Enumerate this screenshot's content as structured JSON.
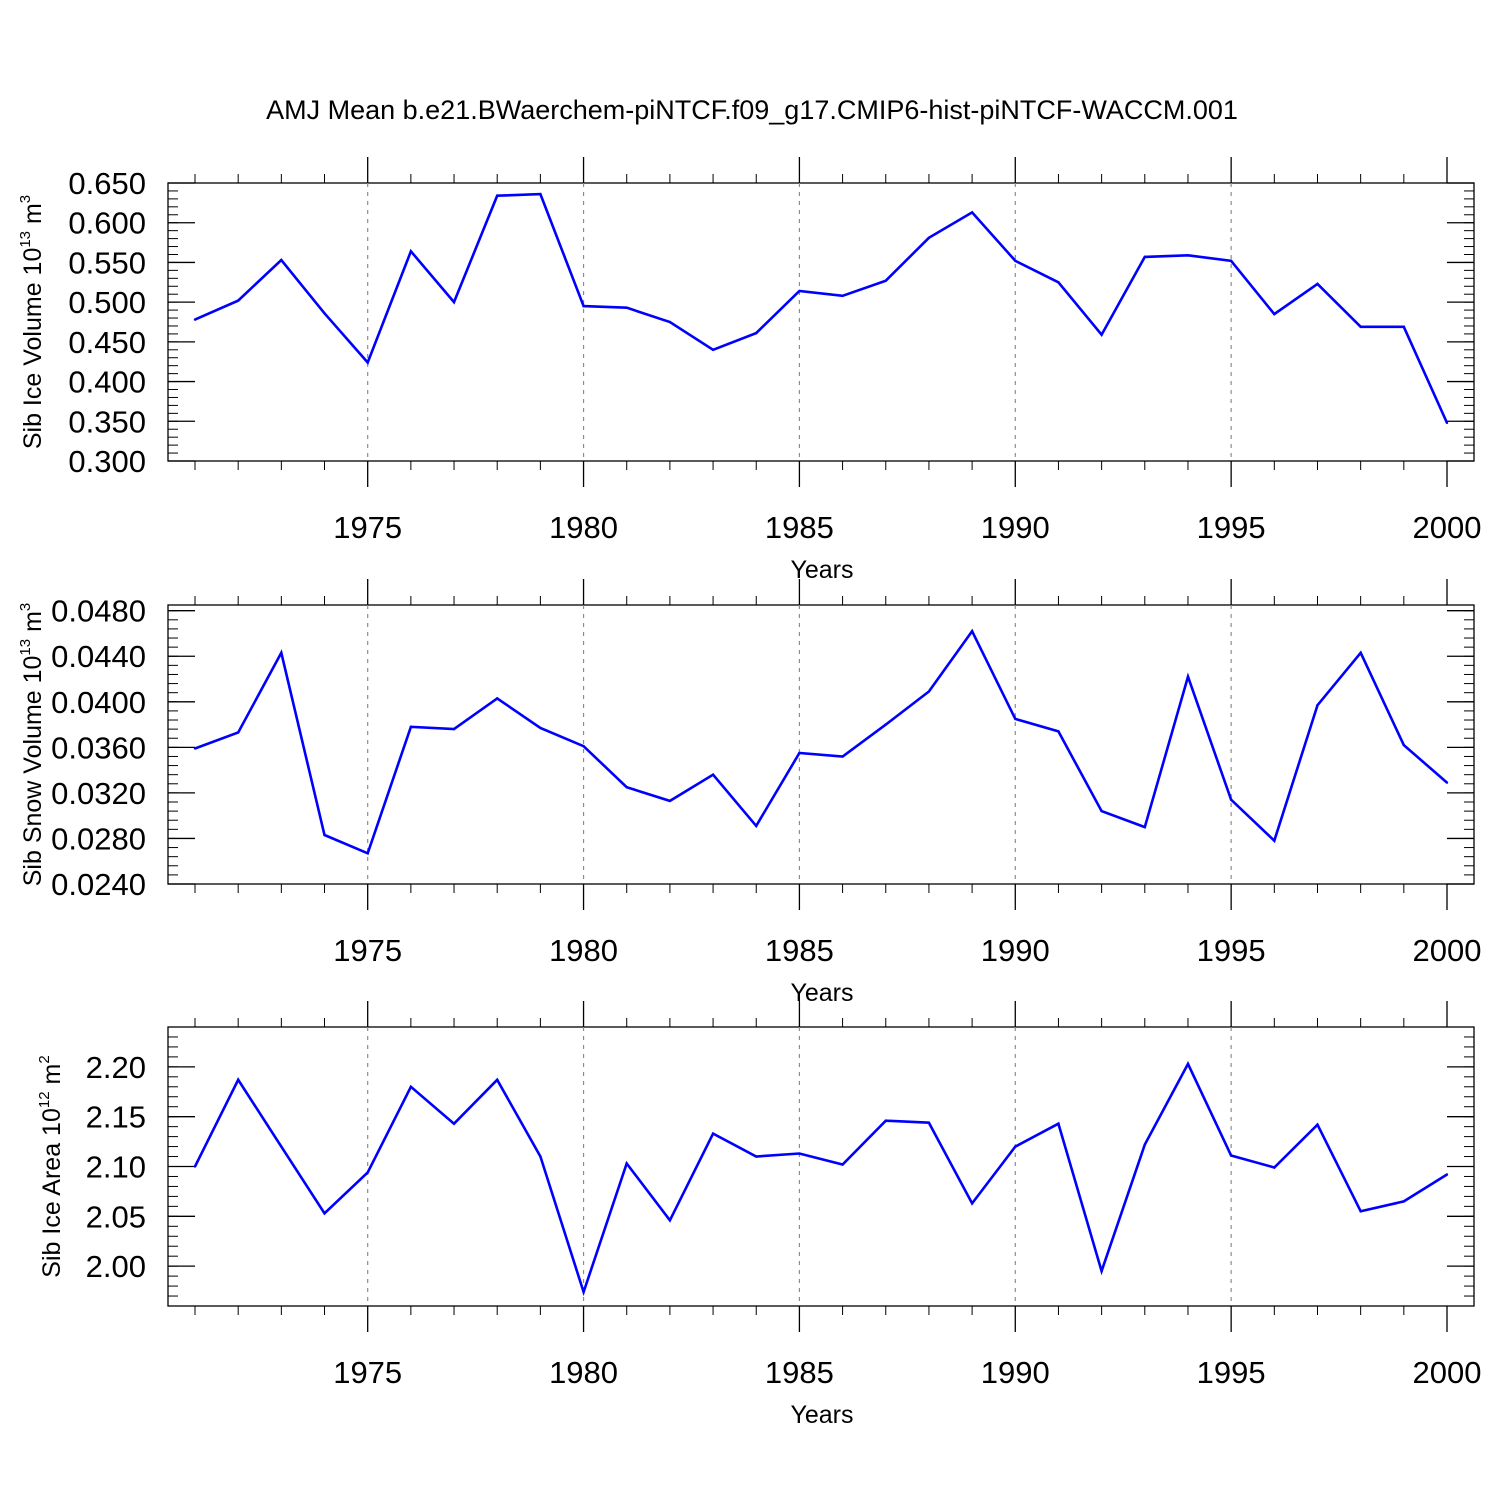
{
  "title": "AMJ Mean b.e21.BWaerchem-piNTCF.f09_g17.CMIP6-hist-piNTCF-WACCM.001",
  "colors": {
    "line": "#0000ff",
    "axes": "#000000",
    "grid": "#8c8c8c"
  },
  "chart_data": [
    {
      "type": "line",
      "title": "AMJ Mean b.e21.BWaerchem-piNTCF.f09_g17.CMIP6-hist-piNTCF-WACCM.001",
      "xlabel": "Years",
      "ylabel": {
        "base": "Sib Ice Volume 10",
        "exp": "13",
        "unit": " m",
        "unit_exp": "3"
      },
      "xlim": [
        1971,
        2000
      ],
      "ylim": [
        0.3,
        0.65
      ],
      "xticks": [
        1975,
        1980,
        1985,
        1990,
        1995,
        2000
      ],
      "xtick_labels": [
        "1975",
        "1980",
        "1985",
        "1990",
        "1995",
        "2000"
      ],
      "yticks": [
        0.3,
        0.35,
        0.4,
        0.45,
        0.5,
        0.55,
        0.6,
        0.65
      ],
      "ytick_labels": [
        "0.300",
        "0.350",
        "0.400",
        "0.450",
        "0.500",
        "0.550",
        "0.600",
        "0.650"
      ],
      "x": [
        1971,
        1972,
        1973,
        1974,
        1975,
        1976,
        1977,
        1978,
        1979,
        1980,
        1981,
        1982,
        1983,
        1984,
        1985,
        1986,
        1987,
        1988,
        1989,
        1990,
        1991,
        1992,
        1993,
        1994,
        1995,
        1996,
        1997,
        1998,
        1999,
        2000
      ],
      "values": [
        0.478,
        0.502,
        0.553,
        0.486,
        0.424,
        0.564,
        0.5,
        0.634,
        0.636,
        0.495,
        0.493,
        0.475,
        0.44,
        0.461,
        0.514,
        0.508,
        0.527,
        0.581,
        0.613,
        0.552,
        0.525,
        0.459,
        0.557,
        0.559,
        0.552,
        0.485,
        0.523,
        0.469,
        0.469,
        0.348
      ],
      "grid": "dashed vertical at x ticks"
    },
    {
      "type": "line",
      "xlabel": "Years",
      "ylabel": {
        "base": "Sib Snow Volume 10",
        "exp": "13",
        "unit": " m",
        "unit_exp": "3"
      },
      "xlim": [
        1971,
        2000
      ],
      "ylim": [
        0.024,
        0.0485
      ],
      "xticks": [
        1975,
        1980,
        1985,
        1990,
        1995,
        2000
      ],
      "xtick_labels": [
        "1975",
        "1980",
        "1985",
        "1990",
        "1995",
        "2000"
      ],
      "yticks": [
        0.024,
        0.028,
        0.032,
        0.036,
        0.04,
        0.044,
        0.048
      ],
      "ytick_labels": [
        "0.0240",
        "0.0280",
        "0.0320",
        "0.0360",
        "0.0400",
        "0.0440",
        "0.0480"
      ],
      "x": [
        1971,
        1972,
        1973,
        1974,
        1975,
        1976,
        1977,
        1978,
        1979,
        1980,
        1981,
        1982,
        1983,
        1984,
        1985,
        1986,
        1987,
        1988,
        1989,
        1990,
        1991,
        1992,
        1993,
        1994,
        1995,
        1996,
        1997,
        1998,
        1999,
        2000
      ],
      "values": [
        0.0359,
        0.0373,
        0.0443,
        0.0283,
        0.0267,
        0.0378,
        0.0376,
        0.0403,
        0.0377,
        0.0361,
        0.0325,
        0.0313,
        0.0336,
        0.0291,
        0.0355,
        0.0352,
        0.038,
        0.0409,
        0.0462,
        0.0385,
        0.0374,
        0.0304,
        0.029,
        0.0422,
        0.0314,
        0.0278,
        0.0397,
        0.0443,
        0.0362,
        0.0329
      ],
      "grid": "dashed vertical at x ticks"
    },
    {
      "type": "line",
      "xlabel": "Years",
      "ylabel": {
        "base": "Sib Ice Area 10",
        "exp": "12",
        "unit": " m",
        "unit_exp": "2"
      },
      "xlim": [
        1971,
        2000
      ],
      "ylim": [
        1.96,
        2.24
      ],
      "xticks": [
        1975,
        1980,
        1985,
        1990,
        1995,
        2000
      ],
      "xtick_labels": [
        "1975",
        "1980",
        "1985",
        "1990",
        "1995",
        "2000"
      ],
      "yticks": [
        2.0,
        2.05,
        2.1,
        2.15,
        2.2
      ],
      "ytick_labels": [
        "2.00",
        "2.05",
        "2.10",
        "2.15",
        "2.20"
      ],
      "x": [
        1971,
        1972,
        1973,
        1974,
        1975,
        1976,
        1977,
        1978,
        1979,
        1980,
        1981,
        1982,
        1983,
        1984,
        1985,
        1986,
        1987,
        1988,
        1989,
        1990,
        1991,
        1992,
        1993,
        1994,
        1995,
        1996,
        1997,
        1998,
        1999,
        2000
      ],
      "values": [
        2.1,
        2.187,
        2.12,
        2.053,
        2.094,
        2.18,
        2.143,
        2.187,
        2.11,
        1.974,
        2.103,
        2.046,
        2.133,
        2.11,
        2.113,
        2.102,
        2.146,
        2.144,
        2.063,
        2.12,
        2.143,
        1.995,
        2.122,
        2.203,
        2.111,
        2.099,
        2.142,
        2.055,
        2.065,
        2.092
      ],
      "grid": "dashed vertical at x ticks"
    }
  ]
}
